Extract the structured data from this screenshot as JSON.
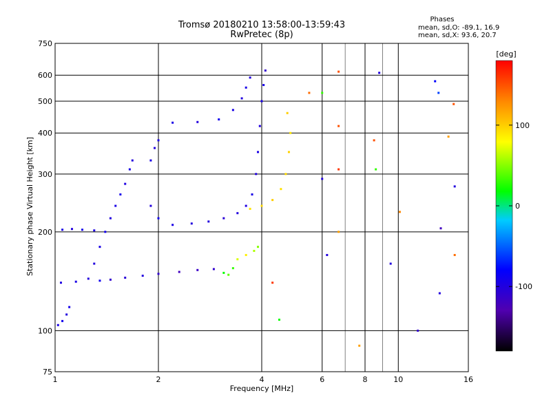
{
  "header": {
    "title_line1": "Tromsø 20180210 13:58:00-13:59:43",
    "title_line2": "RwPretec (8p)",
    "phases_title": "Phases",
    "phases_line_o": "mean, sd,O: -89.1, 16.9",
    "phases_line_x": "mean, sd,X:  93.6, 20.7"
  },
  "colorbar": {
    "label": "[deg]",
    "range": [
      -180,
      180
    ],
    "ticks": [
      {
        "value": 100,
        "label": "100"
      },
      {
        "value": 0,
        "label": "0"
      },
      {
        "value": -100,
        "label": "-100"
      }
    ]
  },
  "chart_data": {
    "type": "scatter",
    "xlabel": "Frequency [MHz]",
    "ylabel": "Stationary phase Virtual Height [km]",
    "xscale": "log",
    "yscale": "log",
    "xlim": [
      1,
      16
    ],
    "ylim": [
      75,
      750
    ],
    "grid": true,
    "color_by": "phase [deg]",
    "x_ticks": [
      {
        "value": 1,
        "label": "1"
      },
      {
        "value": 2,
        "label": "2"
      },
      {
        "value": 4,
        "label": "4"
      },
      {
        "value": 6,
        "label": "6"
      },
      {
        "value": 8,
        "label": "8"
      },
      {
        "value": 10,
        "label": "10"
      },
      {
        "value": 16,
        "label": "16"
      }
    ],
    "x_gridlines": [
      2,
      4,
      6,
      8,
      10
    ],
    "x_minor_gridlines": [
      7,
      9
    ],
    "y_ticks": [
      {
        "value": 75,
        "label": "75"
      },
      {
        "value": 100,
        "label": "100"
      },
      {
        "value": 200,
        "label": "200"
      },
      {
        "value": 300,
        "label": "300"
      },
      {
        "value": 400,
        "label": "400"
      },
      {
        "value": 500,
        "label": "500"
      },
      {
        "value": 600,
        "label": "600"
      },
      {
        "value": 750,
        "label": "750"
      }
    ],
    "y_gridlines": [
      100,
      200,
      300,
      400,
      500,
      600
    ],
    "points": [
      {
        "x": 1.02,
        "y": 104,
        "phase": -95
      },
      {
        "x": 1.05,
        "y": 107,
        "phase": -90
      },
      {
        "x": 1.08,
        "y": 112,
        "phase": -100
      },
      {
        "x": 1.1,
        "y": 118,
        "phase": -92
      },
      {
        "x": 1.04,
        "y": 140,
        "phase": -98
      },
      {
        "x": 1.15,
        "y": 141,
        "phase": -95
      },
      {
        "x": 1.25,
        "y": 144,
        "phase": -100
      },
      {
        "x": 1.35,
        "y": 142,
        "phase": -90
      },
      {
        "x": 1.45,
        "y": 143,
        "phase": -110
      },
      {
        "x": 1.6,
        "y": 145,
        "phase": -105
      },
      {
        "x": 1.8,
        "y": 147,
        "phase": -100
      },
      {
        "x": 2.0,
        "y": 149,
        "phase": -110
      },
      {
        "x": 2.3,
        "y": 151,
        "phase": -120
      },
      {
        "x": 2.6,
        "y": 153,
        "phase": -115
      },
      {
        "x": 2.9,
        "y": 154,
        "phase": -110
      },
      {
        "x": 3.1,
        "y": 150,
        "phase": 20
      },
      {
        "x": 3.2,
        "y": 148,
        "phase": 40
      },
      {
        "x": 3.3,
        "y": 155,
        "phase": 30
      },
      {
        "x": 1.05,
        "y": 203,
        "phase": -95
      },
      {
        "x": 1.12,
        "y": 204,
        "phase": -100
      },
      {
        "x": 1.2,
        "y": 203,
        "phase": -92
      },
      {
        "x": 1.3,
        "y": 202,
        "phase": -96
      },
      {
        "x": 1.3,
        "y": 160,
        "phase": -100
      },
      {
        "x": 1.35,
        "y": 180,
        "phase": -95
      },
      {
        "x": 1.4,
        "y": 200,
        "phase": -90
      },
      {
        "x": 1.45,
        "y": 220,
        "phase": -100
      },
      {
        "x": 1.5,
        "y": 240,
        "phase": -95
      },
      {
        "x": 1.55,
        "y": 260,
        "phase": -92
      },
      {
        "x": 1.6,
        "y": 280,
        "phase": -98
      },
      {
        "x": 1.65,
        "y": 310,
        "phase": -95
      },
      {
        "x": 1.68,
        "y": 330,
        "phase": -100
      },
      {
        "x": 1.9,
        "y": 330,
        "phase": -95
      },
      {
        "x": 1.95,
        "y": 360,
        "phase": -100
      },
      {
        "x": 2.0,
        "y": 380,
        "phase": -95
      },
      {
        "x": 1.9,
        "y": 240,
        "phase": -100
      },
      {
        "x": 2.0,
        "y": 220,
        "phase": -90
      },
      {
        "x": 2.2,
        "y": 210,
        "phase": -95
      },
      {
        "x": 2.5,
        "y": 212,
        "phase": -100
      },
      {
        "x": 2.8,
        "y": 215,
        "phase": -100
      },
      {
        "x": 3.1,
        "y": 220,
        "phase": -105
      },
      {
        "x": 3.4,
        "y": 228,
        "phase": -100
      },
      {
        "x": 3.6,
        "y": 240,
        "phase": -98
      },
      {
        "x": 3.75,
        "y": 260,
        "phase": -95
      },
      {
        "x": 3.85,
        "y": 300,
        "phase": -100
      },
      {
        "x": 3.9,
        "y": 350,
        "phase": -95
      },
      {
        "x": 3.95,
        "y": 420,
        "phase": -100
      },
      {
        "x": 4.0,
        "y": 500,
        "phase": -95
      },
      {
        "x": 4.05,
        "y": 560,
        "phase": -92
      },
      {
        "x": 4.1,
        "y": 620,
        "phase": -110
      },
      {
        "x": 2.2,
        "y": 430,
        "phase": -95
      },
      {
        "x": 2.6,
        "y": 432,
        "phase": -100
      },
      {
        "x": 3.0,
        "y": 440,
        "phase": -90
      },
      {
        "x": 3.3,
        "y": 470,
        "phase": -95
      },
      {
        "x": 3.5,
        "y": 510,
        "phase": -100
      },
      {
        "x": 3.6,
        "y": 550,
        "phase": -95
      },
      {
        "x": 3.7,
        "y": 590,
        "phase": -100
      },
      {
        "x": 3.7,
        "y": 235,
        "phase": 90
      },
      {
        "x": 4.0,
        "y": 240,
        "phase": 95
      },
      {
        "x": 4.3,
        "y": 250,
        "phase": 100
      },
      {
        "x": 4.55,
        "y": 270,
        "phase": 92
      },
      {
        "x": 4.7,
        "y": 300,
        "phase": 95
      },
      {
        "x": 4.8,
        "y": 350,
        "phase": 98
      },
      {
        "x": 4.85,
        "y": 400,
        "phase": 90
      },
      {
        "x": 4.75,
        "y": 460,
        "phase": 100
      },
      {
        "x": 3.4,
        "y": 165,
        "phase": 70
      },
      {
        "x": 3.6,
        "y": 170,
        "phase": 85
      },
      {
        "x": 3.8,
        "y": 175,
        "phase": 60
      },
      {
        "x": 3.9,
        "y": 180,
        "phase": 50
      },
      {
        "x": 4.3,
        "y": 140,
        "phase": 160
      },
      {
        "x": 4.5,
        "y": 108,
        "phase": 20
      },
      {
        "x": 5.5,
        "y": 530,
        "phase": 140
      },
      {
        "x": 6.0,
        "y": 530,
        "phase": 30
      },
      {
        "x": 6.7,
        "y": 615,
        "phase": 150
      },
      {
        "x": 6.7,
        "y": 420,
        "phase": 150
      },
      {
        "x": 6.7,
        "y": 310,
        "phase": 160
      },
      {
        "x": 6.7,
        "y": 200,
        "phase": 120
      },
      {
        "x": 6.0,
        "y": 290,
        "phase": -100
      },
      {
        "x": 6.2,
        "y": 170,
        "phase": -100
      },
      {
        "x": 7.7,
        "y": 90,
        "phase": 120
      },
      {
        "x": 8.5,
        "y": 380,
        "phase": 150
      },
      {
        "x": 8.6,
        "y": 310,
        "phase": 30
      },
      {
        "x": 8.8,
        "y": 610,
        "phase": -100
      },
      {
        "x": 9.5,
        "y": 160,
        "phase": -100
      },
      {
        "x": 10.1,
        "y": 230,
        "phase": 130
      },
      {
        "x": 11.4,
        "y": 100,
        "phase": -110
      },
      {
        "x": 12.8,
        "y": 575,
        "phase": -80
      },
      {
        "x": 13.1,
        "y": 530,
        "phase": -60
      },
      {
        "x": 13.3,
        "y": 205,
        "phase": -120
      },
      {
        "x": 13.2,
        "y": 130,
        "phase": -100
      },
      {
        "x": 14.0,
        "y": 390,
        "phase": 120
      },
      {
        "x": 14.5,
        "y": 490,
        "phase": 150
      },
      {
        "x": 14.6,
        "y": 275,
        "phase": -100
      },
      {
        "x": 14.6,
        "y": 170,
        "phase": 140
      }
    ]
  }
}
